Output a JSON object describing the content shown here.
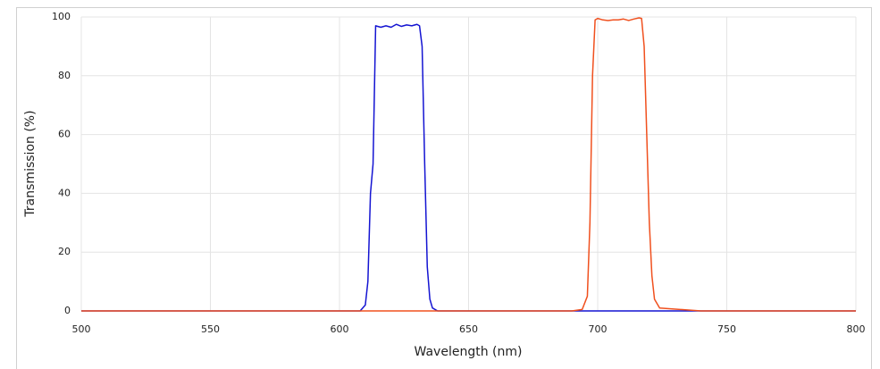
{
  "chart_data": {
    "type": "line",
    "x_label": "Wavelength (nm)",
    "y_label": "Transmission (%)",
    "x": [
      500,
      600,
      608,
      610,
      611,
      612,
      613,
      614,
      616,
      618,
      620,
      622,
      624,
      626,
      628,
      630,
      631,
      632,
      633,
      634,
      635,
      636,
      638,
      650,
      690,
      694,
      696,
      697,
      698,
      699,
      700,
      702,
      704,
      706,
      708,
      710,
      712,
      714,
      716,
      717,
      718,
      719,
      720,
      721,
      722,
      724,
      740,
      800
    ],
    "series": [
      {
        "color": "#1414d2",
        "values": [
          0,
          0,
          0,
          2,
          10,
          40,
          50,
          97,
          96.5,
          97,
          96.5,
          97.5,
          96.8,
          97.3,
          97,
          97.5,
          97,
          90,
          50,
          15,
          4,
          1,
          0,
          0,
          0,
          0,
          0,
          0,
          0,
          0,
          0,
          0,
          0,
          0,
          0,
          0,
          0,
          0,
          0,
          0,
          0,
          0,
          0,
          0,
          0,
          0,
          0,
          0
        ]
      },
      {
        "color": "#f0501e",
        "values": [
          0,
          0,
          0,
          0,
          0,
          0,
          0,
          0,
          0,
          0,
          0,
          0,
          0,
          0,
          0,
          0,
          0,
          0,
          0,
          0,
          0,
          0,
          0,
          0,
          0,
          0.5,
          5,
          30,
          80,
          99,
          99.5,
          99,
          98.8,
          99,
          99,
          99.3,
          98.8,
          99.3,
          99.7,
          99.5,
          90,
          60,
          30,
          12,
          4,
          1,
          0,
          0
        ]
      }
    ],
    "xlim": [
      500,
      800
    ],
    "xticks": [
      500,
      550,
      600,
      650,
      700,
      750,
      800
    ],
    "ylim": [
      0,
      100
    ],
    "yticks": [
      0,
      20,
      40,
      60,
      80,
      100
    ],
    "grid": true
  }
}
